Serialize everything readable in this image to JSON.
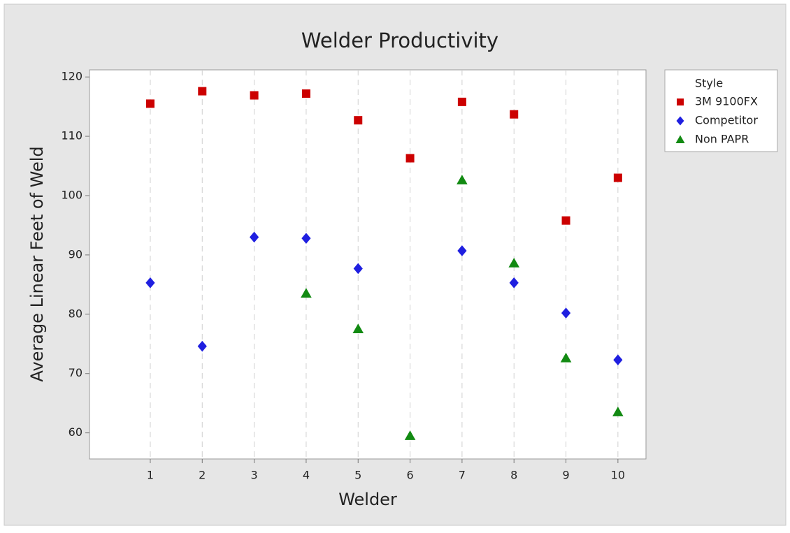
{
  "chart_data": {
    "type": "scatter",
    "title": "Welder Productivity",
    "x_label": "Welder",
    "y_label": "Average Linear Feet of Weld",
    "x": [
      1,
      2,
      3,
      4,
      5,
      6,
      7,
      8,
      9,
      10
    ],
    "series": [
      {
        "name": "3M 9100FX",
        "color": "#cc0000",
        "marker": "square",
        "values": [
          115.5,
          117.6,
          116.9,
          117.2,
          112.7,
          106.3,
          115.8,
          113.7,
          95.8,
          103
        ]
      },
      {
        "name": "Competitor",
        "color": "#1f1fe0",
        "marker": "diamond",
        "values": [
          85.3,
          74.6,
          93,
          92.8,
          87.7,
          null,
          90.7,
          85.3,
          80.2,
          72.3
        ]
      },
      {
        "name": "Non PAPR",
        "color": "#128a12",
        "marker": "triangle",
        "values": [
          null,
          null,
          null,
          83.5,
          77.5,
          59.5,
          102.6,
          88.6,
          72.6,
          63.5
        ]
      }
    ],
    "legend_title": "Style",
    "legend_position": "right",
    "xlim": [
      -0.17,
      10.54
    ],
    "xticks": [
      1,
      2,
      3,
      4,
      5,
      6,
      7,
      8,
      9,
      10
    ],
    "ylim": [
      55.6,
      121.2
    ],
    "yticks": [
      60,
      70,
      80,
      90,
      100,
      110,
      120
    ],
    "x_grid": true
  }
}
